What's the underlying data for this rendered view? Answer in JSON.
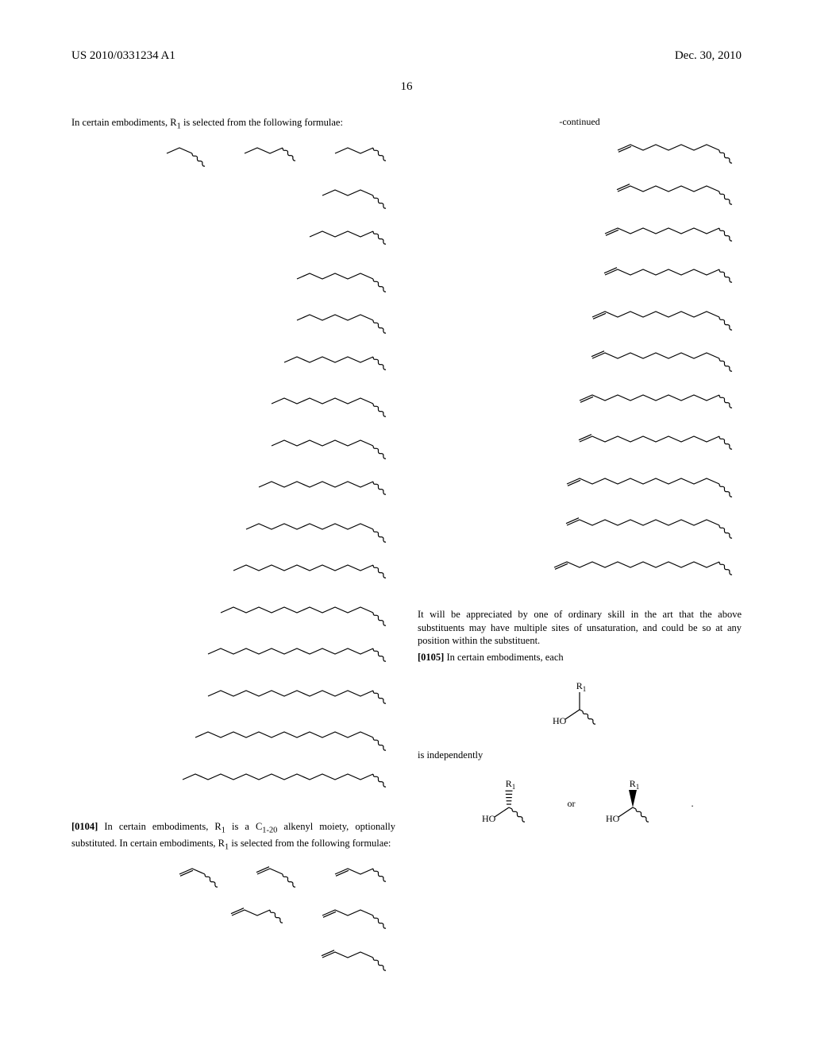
{
  "header": {
    "patent_number": "US 2010/0331234 A1",
    "date": "Dec. 30, 2010",
    "page_number": "16"
  },
  "left_column": {
    "intro_text": "In certain embodiments, R",
    "intro_sub": "1",
    "intro_text2": " is selected from the following formulae:",
    "alkyl_block": {
      "row1": [
        2,
        3,
        3
      ],
      "rows_long": [
        4,
        5,
        6,
        6,
        7,
        8,
        8,
        9,
        10,
        11,
        12,
        13,
        13,
        14,
        15
      ]
    },
    "para0104_num": "[0104]",
    "para0104_text1": "   In certain embodiments, R",
    "para0104_sub": "1",
    "para0104_text2": " is a C",
    "para0104_range": "1-20",
    "para0104_text3": " alkenyl moiety, optionally substituted. In certain embodiments, R",
    "para0104_sub2": "1",
    "para0104_text4": " is selected from the following formulae:",
    "alkenyl_block": {
      "row1": [
        {
          "n": 1,
          "db": "end"
        },
        {
          "n": 1,
          "db": "start"
        },
        {
          "n": 2,
          "db": "end"
        }
      ],
      "row2": [
        {
          "n": 2,
          "db": "start"
        },
        {
          "n": 3,
          "db": "end"
        }
      ],
      "row3": [
        {
          "n": 3,
          "db": "start"
        }
      ]
    }
  },
  "right_column": {
    "continued_label": "-continued",
    "alkenyl_long": [
      {
        "n": 4,
        "db": "end"
      },
      {
        "n": 4,
        "db": "start"
      },
      {
        "n": 5,
        "db": "end"
      },
      {
        "n": 5,
        "db": "start"
      },
      {
        "n": 6,
        "db": "end"
      },
      {
        "n": 6,
        "db": "start"
      },
      {
        "n": 7,
        "db": "end"
      },
      {
        "n": 7,
        "db": "start"
      },
      {
        "n": 8,
        "db": "end"
      },
      {
        "n": 8,
        "db": "start"
      },
      {
        "n": 9,
        "db": "end"
      }
    ],
    "appreciation_text": "It will be appreciated by one of ordinary skill in the art that the above substituents may have multiple sites of unsaturation, and could be so at any position within the substituent.",
    "para0105_num": "[0105]",
    "para0105_text": "   In certain embodiments, each",
    "is_independently": "is independently",
    "or_label": "or",
    "formula_label_R1": "R",
    "formula_label_sub": "1",
    "formula_label_HO": "HO",
    "period": "."
  },
  "style": {
    "stroke": "#000000",
    "stroke_width": 1.2,
    "font_family": "Times New Roman",
    "title_fontsize": 15,
    "body_fontsize": 12.5,
    "sub_fontsize": 9
  }
}
